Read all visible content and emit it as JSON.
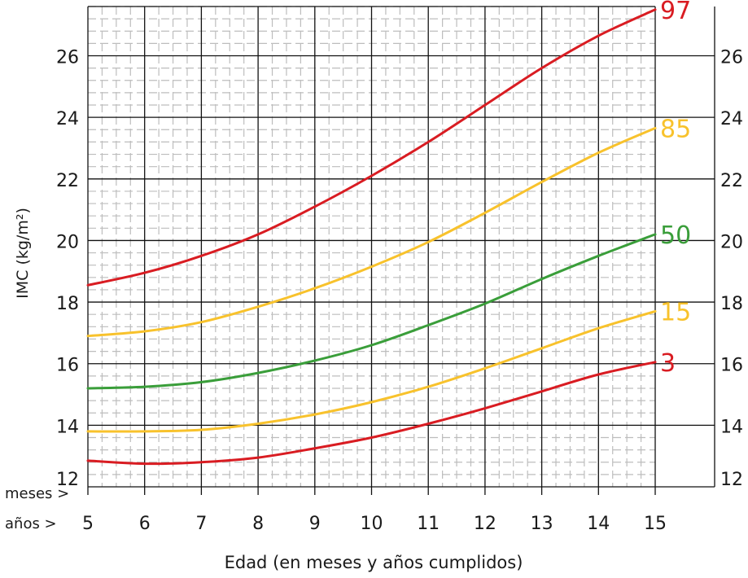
{
  "chart_data": {
    "type": "line",
    "xlabel": "Edad (en meses y años cumplidos)",
    "ylabel": "IMC (kg/m²)",
    "row_labels": {
      "months": "meses >",
      "years": "años >"
    },
    "x_ticks": [
      5,
      6,
      7,
      8,
      9,
      10,
      11,
      12,
      13,
      14,
      15
    ],
    "y_ticks": [
      12,
      14,
      16,
      18,
      20,
      22,
      24,
      26
    ],
    "xlim": [
      5,
      15
    ],
    "ylim": [
      12,
      27.6
    ],
    "grid": true,
    "x": [
      5,
      6,
      7,
      8,
      9,
      10,
      11,
      12,
      13,
      14,
      15
    ],
    "series": [
      {
        "name": "97",
        "color": "#d91c22",
        "values": [
          18.55,
          18.95,
          19.5,
          20.2,
          21.1,
          22.1,
          23.2,
          24.4,
          25.6,
          26.65,
          27.5
        ]
      },
      {
        "name": "85",
        "color": "#f8c22c",
        "values": [
          16.9,
          17.05,
          17.35,
          17.85,
          18.45,
          19.15,
          19.95,
          20.9,
          21.9,
          22.85,
          23.65
        ]
      },
      {
        "name": "50",
        "color": "#3a9e3a",
        "values": [
          15.2,
          15.25,
          15.4,
          15.7,
          16.1,
          16.6,
          17.25,
          17.95,
          18.75,
          19.5,
          20.2
        ]
      },
      {
        "name": "15",
        "color": "#f8c22c",
        "values": [
          13.8,
          13.8,
          13.85,
          14.05,
          14.35,
          14.75,
          15.25,
          15.85,
          16.5,
          17.15,
          17.7
        ]
      },
      {
        "name": "3",
        "color": "#d91c22",
        "values": [
          12.85,
          12.75,
          12.8,
          12.95,
          13.25,
          13.6,
          14.05,
          14.55,
          15.1,
          15.65,
          16.05
        ]
      }
    ]
  }
}
